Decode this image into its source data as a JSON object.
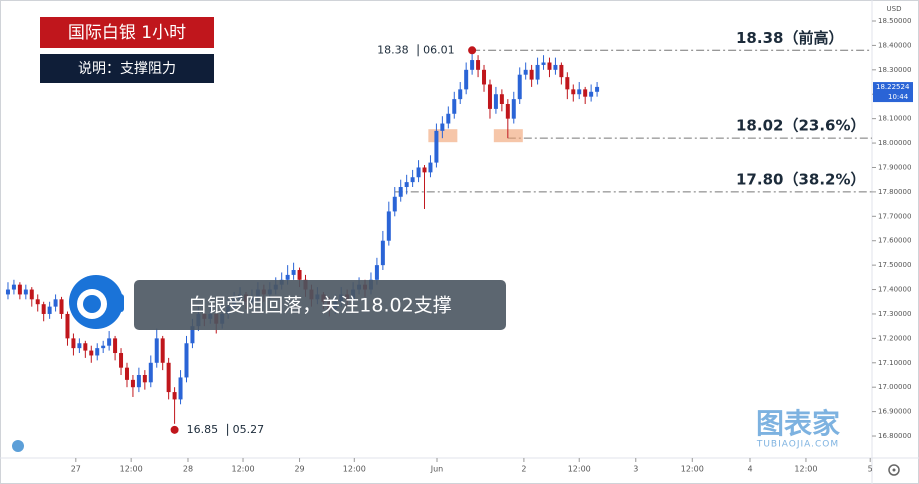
{
  "chart_data": {
    "type": "candlestick",
    "title": "国际白银 1小时",
    "subtitle": "说明：支撑阻力",
    "annotation": "白银受阻回落，关注18.02支撑",
    "currency": "USD",
    "up_color": "#2a64d6",
    "down_color": "#c0161c",
    "grid": false,
    "xlim": [
      -1.34,
      145.2
    ],
    "ylim": [
      16.71,
      18.586
    ],
    "xticks": [
      {
        "value": 11.4,
        "label": "27"
      },
      {
        "value": 20.7,
        "label": "12:00"
      },
      {
        "value": 30.25,
        "label": "28"
      },
      {
        "value": 39.5,
        "label": "12:00"
      },
      {
        "value": 49,
        "label": "29"
      },
      {
        "value": 58.2,
        "label": "12:00"
      },
      {
        "value": 72.1,
        "label": "Jun"
      },
      {
        "value": 86.7,
        "label": "2"
      },
      {
        "value": 96,
        "label": "12:00"
      },
      {
        "value": 105.5,
        "label": "3"
      },
      {
        "value": 115,
        "label": "12:00"
      },
      {
        "value": 124.7,
        "label": "4"
      },
      {
        "value": 134.1,
        "label": "12:00"
      },
      {
        "value": 144.9,
        "label": "5"
      }
    ],
    "yticks": [
      {
        "value": 16.8,
        "label": "16.80000"
      },
      {
        "value": 16.9,
        "label": "16.90000"
      },
      {
        "value": 17.0,
        "label": "17.00000"
      },
      {
        "value": 17.1,
        "label": "17.10000"
      },
      {
        "value": 17.2,
        "label": "17.20000"
      },
      {
        "value": 17.3,
        "label": "17.30000"
      },
      {
        "value": 17.4,
        "label": "17.40000"
      },
      {
        "value": 17.5,
        "label": "17.50000"
      },
      {
        "value": 17.6,
        "label": "17.60000"
      },
      {
        "value": 17.7,
        "label": "17.70000"
      },
      {
        "value": 17.8,
        "label": "17.80000"
      },
      {
        "value": 17.9,
        "label": "17.90000"
      },
      {
        "value": 18.0,
        "label": "18.00000"
      },
      {
        "value": 18.1,
        "label": "18.10000"
      },
      {
        "value": 18.2,
        "label": "18.20000"
      },
      {
        "value": 18.3,
        "label": "18.30000"
      },
      {
        "value": 18.4,
        "label": "18.40000"
      },
      {
        "value": 18.5,
        "label": "18.50000"
      }
    ],
    "candles": [
      [
        17.38,
        17.43,
        17.36,
        17.4
      ],
      [
        17.4,
        17.44,
        17.38,
        17.42
      ],
      [
        17.42,
        17.43,
        17.36,
        17.38
      ],
      [
        17.38,
        17.42,
        17.36,
        17.4
      ],
      [
        17.4,
        17.41,
        17.33,
        17.36
      ],
      [
        17.36,
        17.38,
        17.31,
        17.34
      ],
      [
        17.34,
        17.35,
        17.27,
        17.3
      ],
      [
        17.3,
        17.35,
        17.28,
        17.33
      ],
      [
        17.33,
        17.38,
        17.31,
        17.36
      ],
      [
        17.36,
        17.37,
        17.28,
        17.3
      ],
      [
        17.3,
        17.31,
        17.17,
        17.2
      ],
      [
        17.2,
        17.22,
        17.13,
        17.16
      ],
      [
        17.16,
        17.2,
        17.14,
        17.18
      ],
      [
        17.18,
        17.19,
        17.12,
        17.15
      ],
      [
        17.15,
        17.17,
        17.1,
        17.13
      ],
      [
        17.13,
        17.18,
        17.11,
        17.16
      ],
      [
        17.16,
        17.19,
        17.14,
        17.17
      ],
      [
        17.17,
        17.23,
        17.15,
        17.2
      ],
      [
        17.2,
        17.21,
        17.11,
        17.14
      ],
      [
        17.14,
        17.16,
        17.05,
        17.08
      ],
      [
        17.08,
        17.1,
        17.0,
        17.03
      ],
      [
        17.03,
        17.05,
        16.96,
        17.0
      ],
      [
        17.0,
        17.08,
        16.98,
        17.05
      ],
      [
        17.05,
        17.07,
        16.99,
        17.02
      ],
      [
        17.02,
        17.13,
        17.0,
        17.1
      ],
      [
        17.1,
        17.24,
        17.08,
        17.2
      ],
      [
        17.2,
        17.21,
        17.07,
        17.1
      ],
      [
        17.1,
        17.12,
        16.95,
        16.98
      ],
      [
        16.98,
        17.0,
        16.85,
        16.95
      ],
      [
        16.95,
        17.07,
        16.93,
        17.04
      ],
      [
        17.04,
        17.21,
        17.02,
        17.18
      ],
      [
        17.18,
        17.28,
        17.16,
        17.25
      ],
      [
        17.25,
        17.33,
        17.23,
        17.3
      ],
      [
        17.3,
        17.32,
        17.25,
        17.28
      ],
      [
        17.28,
        17.33,
        17.26,
        17.3
      ],
      [
        17.3,
        17.31,
        17.22,
        17.26
      ],
      [
        17.26,
        17.33,
        17.24,
        17.3
      ],
      [
        17.3,
        17.36,
        17.28,
        17.33
      ],
      [
        17.33,
        17.39,
        17.31,
        17.36
      ],
      [
        17.36,
        17.41,
        17.34,
        17.38
      ],
      [
        17.38,
        17.39,
        17.32,
        17.35
      ],
      [
        17.35,
        17.4,
        17.33,
        17.37
      ],
      [
        17.37,
        17.43,
        17.35,
        17.4
      ],
      [
        17.4,
        17.42,
        17.35,
        17.38
      ],
      [
        17.38,
        17.43,
        17.36,
        17.4
      ],
      [
        17.4,
        17.45,
        17.38,
        17.42
      ],
      [
        17.42,
        17.47,
        17.4,
        17.44
      ],
      [
        17.44,
        17.5,
        17.42,
        17.46
      ],
      [
        17.46,
        17.51,
        17.44,
        17.48
      ],
      [
        17.48,
        17.49,
        17.41,
        17.44
      ],
      [
        17.44,
        17.46,
        17.37,
        17.4
      ],
      [
        17.4,
        17.42,
        17.33,
        17.36
      ],
      [
        17.36,
        17.41,
        17.34,
        17.38
      ],
      [
        17.38,
        17.39,
        17.32,
        17.35
      ],
      [
        17.35,
        17.37,
        17.29,
        17.32
      ],
      [
        17.32,
        17.38,
        17.3,
        17.35
      ],
      [
        17.35,
        17.41,
        17.33,
        17.38
      ],
      [
        17.38,
        17.4,
        17.33,
        17.36
      ],
      [
        17.36,
        17.43,
        17.34,
        17.4
      ],
      [
        17.4,
        17.45,
        17.38,
        17.42
      ],
      [
        17.42,
        17.44,
        17.37,
        17.4
      ],
      [
        17.4,
        17.47,
        17.38,
        17.44
      ],
      [
        17.44,
        17.53,
        17.42,
        17.5
      ],
      [
        17.5,
        17.64,
        17.48,
        17.6
      ],
      [
        17.6,
        17.76,
        17.58,
        17.72
      ],
      [
        17.72,
        17.82,
        17.7,
        17.78
      ],
      [
        17.78,
        17.85,
        17.76,
        17.82
      ],
      [
        17.82,
        17.87,
        17.79,
        17.84
      ],
      [
        17.84,
        17.89,
        17.82,
        17.86
      ],
      [
        17.86,
        17.93,
        17.84,
        17.9
      ],
      [
        17.9,
        17.91,
        17.73,
        17.88
      ],
      [
        17.88,
        17.95,
        17.86,
        17.92
      ],
      [
        17.92,
        18.08,
        17.9,
        18.05
      ],
      [
        18.05,
        18.11,
        18.02,
        18.08
      ],
      [
        18.08,
        18.15,
        18.06,
        18.12
      ],
      [
        18.12,
        18.21,
        18.1,
        18.18
      ],
      [
        18.18,
        18.25,
        18.16,
        18.22
      ],
      [
        18.22,
        18.33,
        18.2,
        18.3
      ],
      [
        18.3,
        18.38,
        18.28,
        18.34
      ],
      [
        18.34,
        18.36,
        18.27,
        18.3
      ],
      [
        18.3,
        18.32,
        18.21,
        18.24
      ],
      [
        18.24,
        18.26,
        18.1,
        18.14
      ],
      [
        18.14,
        18.23,
        18.12,
        18.2
      ],
      [
        18.2,
        18.22,
        18.13,
        18.16
      ],
      [
        18.16,
        18.18,
        18.02,
        18.1
      ],
      [
        18.1,
        18.21,
        18.08,
        18.18
      ],
      [
        18.18,
        18.31,
        18.16,
        18.28
      ],
      [
        18.28,
        18.33,
        18.26,
        18.3
      ],
      [
        18.3,
        18.32,
        18.23,
        18.26
      ],
      [
        18.26,
        18.35,
        18.24,
        18.32
      ],
      [
        18.32,
        18.36,
        18.3,
        18.33
      ],
      [
        18.33,
        18.35,
        18.27,
        18.3
      ],
      [
        18.3,
        18.35,
        18.28,
        18.32
      ],
      [
        18.32,
        18.33,
        18.24,
        18.27
      ],
      [
        18.27,
        18.29,
        18.18,
        18.22
      ],
      [
        18.22,
        18.24,
        18.17,
        18.2
      ],
      [
        18.2,
        18.25,
        18.18,
        18.22
      ],
      [
        18.22,
        18.23,
        18.16,
        18.19
      ],
      [
        18.19,
        18.24,
        18.17,
        18.21
      ],
      [
        18.21,
        18.25,
        18.19,
        18.23
      ]
    ],
    "levels": [
      {
        "value": 18.38,
        "label": "18.38（前高）"
      },
      {
        "value": 18.02,
        "label": "18.02（23.6%）"
      },
      {
        "value": 17.8,
        "label": "17.80（38.2%）"
      }
    ],
    "high_marker": {
      "price": 18.38,
      "date": "06.01"
    },
    "low_marker": {
      "price": 16.85,
      "date": "05.27"
    },
    "last_price": {
      "value": 18.22524,
      "time": "10:44"
    },
    "watermark": {
      "name": "图表家",
      "site": "TUBIAOJIA.COM"
    }
  }
}
